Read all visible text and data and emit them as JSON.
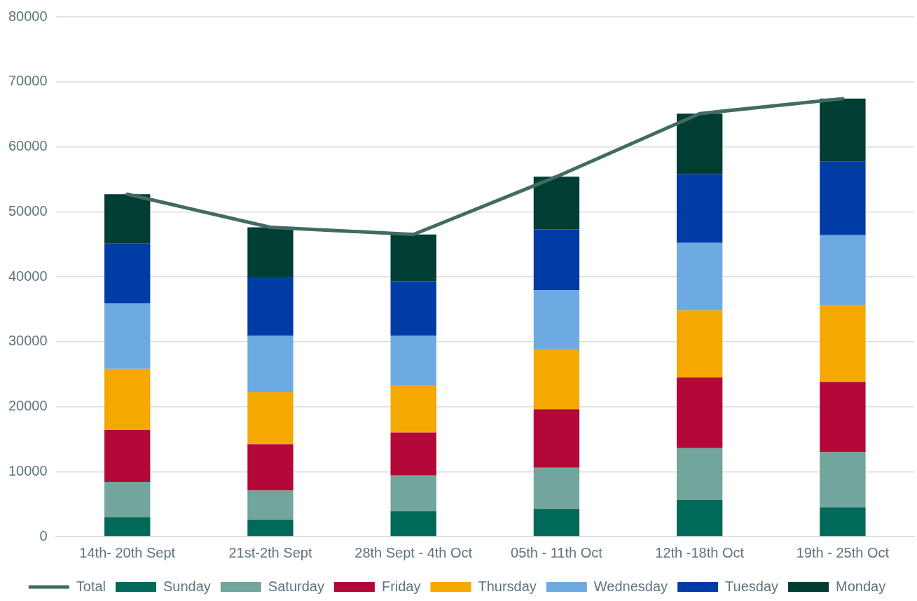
{
  "chart_data": {
    "type": "bar",
    "stacked": true,
    "categories": [
      "14th- 20th Sept",
      "21st-2th Sept",
      "28th Sept - 4th Oct",
      "05th - 11th Oct",
      "12th -18th Oct",
      "19th - 25th Oct"
    ],
    "series": [
      {
        "name": "Sunday",
        "color": "#00695a",
        "values": [
          3000,
          2600,
          3900,
          4200,
          5600,
          4500
        ]
      },
      {
        "name": "Saturday",
        "color": "#72a59b",
        "values": [
          5400,
          4500,
          5500,
          6400,
          8000,
          8500
        ]
      },
      {
        "name": "Friday",
        "color": "#b30838",
        "values": [
          8000,
          7100,
          6600,
          9000,
          10900,
          10800
        ]
      },
      {
        "name": "Thursday",
        "color": "#f5a800",
        "values": [
          9400,
          8000,
          7300,
          9100,
          10300,
          11800
        ]
      },
      {
        "name": "Wednesday",
        "color": "#6eaae2",
        "values": [
          10100,
          8700,
          7600,
          9200,
          10400,
          10800
        ]
      },
      {
        "name": "Tuesday",
        "color": "#003ca6",
        "values": [
          9200,
          9100,
          8400,
          9400,
          10600,
          11300
        ]
      },
      {
        "name": "Monday",
        "color": "#003d33",
        "values": [
          7600,
          7600,
          7200,
          8100,
          9300,
          9700
        ]
      },
      {
        "name": "Total",
        "type": "line",
        "color": "#426b62",
        "values": [
          52700,
          47600,
          46500,
          55400,
          65100,
          67400
        ]
      }
    ],
    "ylim": [
      0,
      80000
    ],
    "yticks": [
      0,
      10000,
      20000,
      30000,
      40000,
      50000,
      60000,
      70000,
      80000
    ],
    "grid": "y",
    "legend": "bottom",
    "marker": "none"
  }
}
